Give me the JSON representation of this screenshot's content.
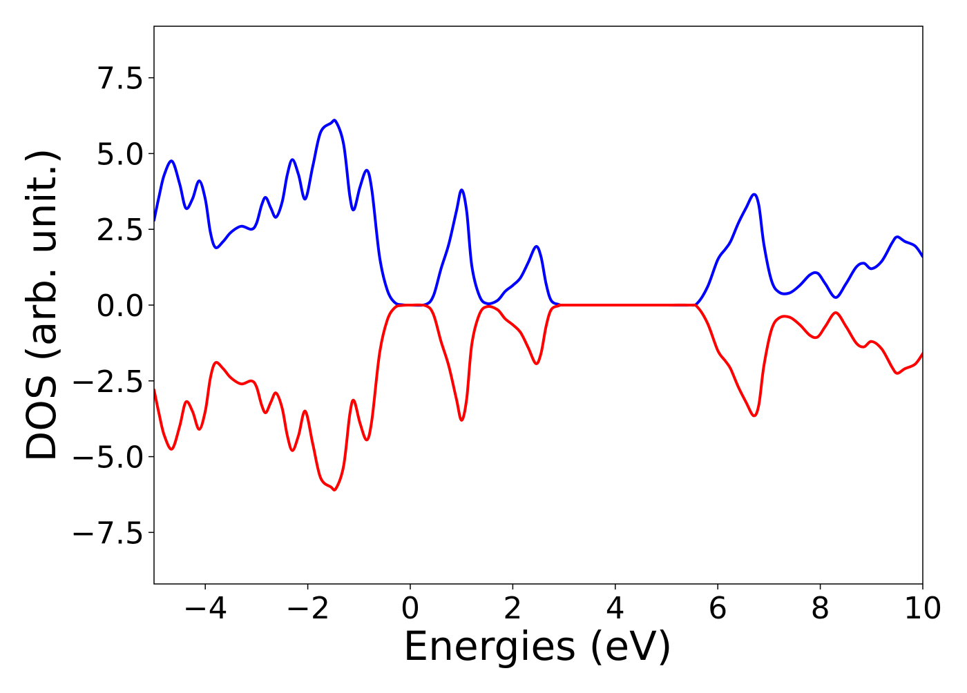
{
  "chart_data": {
    "type": "line",
    "title": "",
    "xlabel": "Energies (eV)",
    "ylabel": "DOS (arb. unit.)",
    "xlim": [
      -5,
      10
    ],
    "ylim": [
      -9.2,
      9.2
    ],
    "xticks": [
      -4,
      -2,
      0,
      2,
      4,
      6,
      8,
      10
    ],
    "xtick_labels": [
      "−4",
      "−2",
      "0",
      "2",
      "4",
      "6",
      "8",
      "10"
    ],
    "yticks": [
      -7.5,
      -5.0,
      -2.5,
      0.0,
      2.5,
      5.0,
      7.5
    ],
    "ytick_labels": [
      "−7.5",
      "−5.0",
      "−2.5",
      "0.0",
      "2.5",
      "5.0",
      "7.5"
    ],
    "grid": false,
    "legend": "none",
    "series": [
      {
        "color": "#0000ff",
        "points": [
          [
            -5.0,
            2.8
          ],
          [
            -4.9,
            3.6
          ],
          [
            -4.8,
            4.3
          ],
          [
            -4.65,
            4.75
          ],
          [
            -4.5,
            4.0
          ],
          [
            -4.38,
            3.2
          ],
          [
            -4.25,
            3.5
          ],
          [
            -4.12,
            4.1
          ],
          [
            -4.0,
            3.5
          ],
          [
            -3.9,
            2.4
          ],
          [
            -3.8,
            1.9
          ],
          [
            -3.65,
            2.1
          ],
          [
            -3.5,
            2.4
          ],
          [
            -3.3,
            2.6
          ],
          [
            -3.1,
            2.5
          ],
          [
            -3.0,
            2.7
          ],
          [
            -2.9,
            3.3
          ],
          [
            -2.82,
            3.55
          ],
          [
            -2.72,
            3.2
          ],
          [
            -2.62,
            2.9
          ],
          [
            -2.5,
            3.4
          ],
          [
            -2.4,
            4.3
          ],
          [
            -2.3,
            4.8
          ],
          [
            -2.18,
            4.3
          ],
          [
            -2.05,
            3.5
          ],
          [
            -1.9,
            4.6
          ],
          [
            -1.75,
            5.7
          ],
          [
            -1.55,
            6.0
          ],
          [
            -1.45,
            6.05
          ],
          [
            -1.3,
            5.3
          ],
          [
            -1.18,
            3.6
          ],
          [
            -1.1,
            3.15
          ],
          [
            -0.98,
            3.9
          ],
          [
            -0.85,
            4.45
          ],
          [
            -0.75,
            3.8
          ],
          [
            -0.6,
            1.6
          ],
          [
            -0.45,
            0.5
          ],
          [
            -0.3,
            0.08
          ],
          [
            -0.15,
            0.01
          ],
          [
            0.0,
            0.0
          ],
          [
            0.3,
            0.02
          ],
          [
            0.45,
            0.3
          ],
          [
            0.6,
            1.2
          ],
          [
            0.75,
            2.0
          ],
          [
            0.9,
            3.1
          ],
          [
            1.0,
            3.8
          ],
          [
            1.1,
            3.1
          ],
          [
            1.2,
            1.3
          ],
          [
            1.35,
            0.3
          ],
          [
            1.5,
            0.05
          ],
          [
            1.7,
            0.15
          ],
          [
            1.85,
            0.45
          ],
          [
            2.0,
            0.65
          ],
          [
            2.15,
            0.9
          ],
          [
            2.3,
            1.4
          ],
          [
            2.45,
            1.93
          ],
          [
            2.55,
            1.6
          ],
          [
            2.65,
            0.7
          ],
          [
            2.75,
            0.15
          ],
          [
            2.9,
            0.02
          ],
          [
            3.0,
            0.0
          ],
          [
            4.0,
            0.0
          ],
          [
            5.0,
            0.0
          ],
          [
            5.45,
            0.0
          ],
          [
            5.6,
            0.06
          ],
          [
            5.8,
            0.6
          ],
          [
            6.0,
            1.5
          ],
          [
            6.15,
            1.85
          ],
          [
            6.25,
            2.1
          ],
          [
            6.4,
            2.7
          ],
          [
            6.55,
            3.2
          ],
          [
            6.7,
            3.65
          ],
          [
            6.8,
            3.3
          ],
          [
            6.9,
            2.0
          ],
          [
            7.05,
            0.8
          ],
          [
            7.2,
            0.42
          ],
          [
            7.4,
            0.4
          ],
          [
            7.6,
            0.65
          ],
          [
            7.8,
            1.0
          ],
          [
            7.95,
            1.05
          ],
          [
            8.1,
            0.7
          ],
          [
            8.3,
            0.25
          ],
          [
            8.5,
            0.7
          ],
          [
            8.7,
            1.25
          ],
          [
            8.85,
            1.38
          ],
          [
            9.0,
            1.2
          ],
          [
            9.2,
            1.45
          ],
          [
            9.4,
            2.05
          ],
          [
            9.5,
            2.25
          ],
          [
            9.65,
            2.1
          ],
          [
            9.85,
            1.95
          ],
          [
            10.0,
            1.6
          ]
        ]
      },
      {
        "color": "#ff0000",
        "points": [
          [
            -5.0,
            -2.8
          ],
          [
            -4.9,
            -3.6
          ],
          [
            -4.8,
            -4.3
          ],
          [
            -4.65,
            -4.75
          ],
          [
            -4.5,
            -4.0
          ],
          [
            -4.38,
            -3.2
          ],
          [
            -4.25,
            -3.5
          ],
          [
            -4.12,
            -4.1
          ],
          [
            -4.0,
            -3.5
          ],
          [
            -3.9,
            -2.4
          ],
          [
            -3.8,
            -1.9
          ],
          [
            -3.65,
            -2.1
          ],
          [
            -3.5,
            -2.4
          ],
          [
            -3.3,
            -2.6
          ],
          [
            -3.1,
            -2.5
          ],
          [
            -3.0,
            -2.7
          ],
          [
            -2.9,
            -3.3
          ],
          [
            -2.82,
            -3.55
          ],
          [
            -2.72,
            -3.2
          ],
          [
            -2.62,
            -2.9
          ],
          [
            -2.5,
            -3.4
          ],
          [
            -2.4,
            -4.3
          ],
          [
            -2.3,
            -4.8
          ],
          [
            -2.18,
            -4.3
          ],
          [
            -2.05,
            -3.5
          ],
          [
            -1.9,
            -4.6
          ],
          [
            -1.75,
            -5.7
          ],
          [
            -1.55,
            -6.0
          ],
          [
            -1.45,
            -6.05
          ],
          [
            -1.3,
            -5.3
          ],
          [
            -1.18,
            -3.6
          ],
          [
            -1.1,
            -3.15
          ],
          [
            -0.98,
            -3.9
          ],
          [
            -0.85,
            -4.45
          ],
          [
            -0.75,
            -3.8
          ],
          [
            -0.6,
            -1.6
          ],
          [
            -0.45,
            -0.5
          ],
          [
            -0.3,
            -0.08
          ],
          [
            -0.15,
            -0.01
          ],
          [
            0.0,
            0.0
          ],
          [
            0.3,
            -0.02
          ],
          [
            0.45,
            -0.3
          ],
          [
            0.6,
            -1.2
          ],
          [
            0.75,
            -2.0
          ],
          [
            0.9,
            -3.1
          ],
          [
            1.0,
            -3.8
          ],
          [
            1.1,
            -3.1
          ],
          [
            1.2,
            -1.3
          ],
          [
            1.35,
            -0.3
          ],
          [
            1.5,
            -0.05
          ],
          [
            1.7,
            -0.15
          ],
          [
            1.85,
            -0.45
          ],
          [
            2.0,
            -0.65
          ],
          [
            2.15,
            -0.9
          ],
          [
            2.3,
            -1.4
          ],
          [
            2.45,
            -1.93
          ],
          [
            2.55,
            -1.6
          ],
          [
            2.65,
            -0.7
          ],
          [
            2.75,
            -0.15
          ],
          [
            2.9,
            -0.02
          ],
          [
            3.0,
            0.0
          ],
          [
            4.0,
            0.0
          ],
          [
            5.0,
            0.0
          ],
          [
            5.45,
            0.0
          ],
          [
            5.6,
            -0.06
          ],
          [
            5.8,
            -0.6
          ],
          [
            6.0,
            -1.5
          ],
          [
            6.15,
            -1.85
          ],
          [
            6.25,
            -2.1
          ],
          [
            6.4,
            -2.7
          ],
          [
            6.55,
            -3.2
          ],
          [
            6.7,
            -3.65
          ],
          [
            6.8,
            -3.3
          ],
          [
            6.9,
            -2.0
          ],
          [
            7.05,
            -0.8
          ],
          [
            7.2,
            -0.42
          ],
          [
            7.4,
            -0.4
          ],
          [
            7.6,
            -0.65
          ],
          [
            7.8,
            -1.0
          ],
          [
            7.95,
            -1.05
          ],
          [
            8.1,
            -0.7
          ],
          [
            8.3,
            -0.25
          ],
          [
            8.5,
            -0.7
          ],
          [
            8.7,
            -1.25
          ],
          [
            8.85,
            -1.38
          ],
          [
            9.0,
            -1.2
          ],
          [
            9.2,
            -1.45
          ],
          [
            9.4,
            -2.05
          ],
          [
            9.5,
            -2.25
          ],
          [
            9.65,
            -2.1
          ],
          [
            9.85,
            -1.95
          ],
          [
            10.0,
            -1.6
          ]
        ]
      }
    ]
  }
}
